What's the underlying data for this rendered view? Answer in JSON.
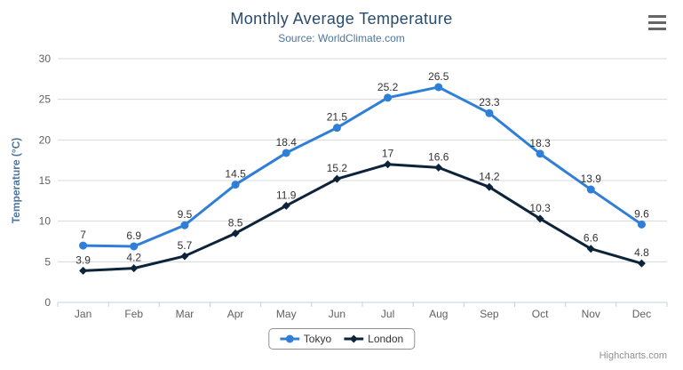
{
  "header": {
    "title": "Monthly Average Temperature",
    "subtitle": "Source: WorldClimate.com"
  },
  "exporting_menu": {
    "icon": "hamburger-icon"
  },
  "credits": {
    "label": "Highcharts.com"
  },
  "colors": {
    "title": "#274b6d",
    "subtitle": "#4d759e",
    "axis_title": "#4d759e",
    "axis_label": "#606060",
    "axis_line": "#c0d0e0",
    "gridline": "#d8d8d8",
    "data_label": "#333333",
    "legend_border": "#909090",
    "legend_text": "#333333",
    "credits_text": "#909090",
    "menu_icon": "#666666",
    "series_tokyo": "#2f7ed8",
    "series_london": "#0d233a"
  },
  "chart_data": {
    "type": "line",
    "title": "Monthly Average Temperature",
    "subtitle": "Source: WorldClimate.com",
    "categories": [
      "Jan",
      "Feb",
      "Mar",
      "Apr",
      "May",
      "Jun",
      "Jul",
      "Aug",
      "Sep",
      "Oct",
      "Nov",
      "Dec"
    ],
    "series": [
      {
        "name": "Tokyo",
        "color": "#2f7ed8",
        "marker": "circle",
        "values": [
          7,
          6.9,
          9.5,
          14.5,
          18.4,
          21.5,
          25.2,
          26.5,
          23.3,
          18.3,
          13.9,
          9.6
        ]
      },
      {
        "name": "London",
        "color": "#0d233a",
        "marker": "diamond",
        "values": [
          3.9,
          4.2,
          5.7,
          8.5,
          11.9,
          15.2,
          17,
          16.6,
          14.2,
          10.3,
          6.6,
          4.8
        ]
      }
    ],
    "xlabel": "",
    "ylabel": "Temperature (°C)",
    "ylim": [
      0,
      30
    ],
    "ytick_step": 5,
    "grid": true,
    "data_labels": true,
    "legend_position": "bottom"
  }
}
